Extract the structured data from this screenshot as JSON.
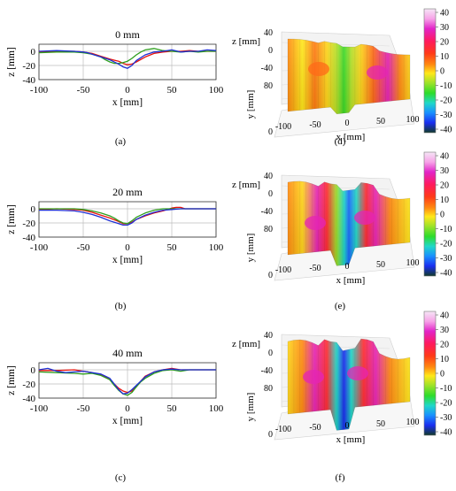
{
  "panels_2d": [
    {
      "letter": "(a)",
      "title": "0 mm",
      "xlabel": "x [mm]",
      "ylabel": "z [mm]",
      "xticks": [
        "-100",
        "-50",
        "0",
        "50",
        "100"
      ],
      "yticks": [
        "0",
        "-20",
        "-40"
      ]
    },
    {
      "letter": "(b)",
      "title": "20 mm",
      "xlabel": "x [mm]",
      "ylabel": "z [mm]",
      "xticks": [
        "-100",
        "-50",
        "0",
        "50",
        "100"
      ],
      "yticks": [
        "0",
        "-20",
        "-40"
      ]
    },
    {
      "letter": "(c)",
      "title": "40 mm",
      "xlabel": "x [mm]",
      "ylabel": "z [mm]",
      "xticks": [
        "-100",
        "-50",
        "0",
        "50",
        "100"
      ],
      "yticks": [
        "0",
        "-20",
        "-40"
      ]
    }
  ],
  "panels_3d": [
    {
      "letter": "(d)",
      "zlabel": "z [mm]",
      "ylabel": "y [mm]",
      "xlabel": "x [mm]",
      "zticks": [
        "40",
        "0",
        "-40"
      ],
      "yticks": [
        "80",
        "0"
      ],
      "xticks": [
        "-100",
        "-50",
        "0",
        "50",
        "100"
      ],
      "colorbar_ticks": [
        "40",
        "30",
        "20",
        "10",
        "0",
        "-10",
        "-20",
        "-30",
        "-40"
      ]
    },
    {
      "letter": "(e)",
      "zlabel": "z [mm]",
      "ylabel": "y [mm]",
      "xlabel": "x [mm]",
      "zticks": [
        "40",
        "0",
        "-40"
      ],
      "yticks": [
        "80",
        "0"
      ],
      "xticks": [
        "-100",
        "-50",
        "0",
        "50",
        "100"
      ],
      "colorbar_ticks": [
        "40",
        "30",
        "20",
        "10",
        "0",
        "-10",
        "-20",
        "-30",
        "-40"
      ]
    },
    {
      "letter": "(f)",
      "zlabel": "z [mm]",
      "ylabel": "y [mm]",
      "xlabel": "x [mm]",
      "zticks": [
        "40",
        "0",
        "-40"
      ],
      "yticks": [
        "80",
        "0"
      ],
      "xticks": [
        "-100",
        "-50",
        "0",
        "50",
        "100"
      ],
      "colorbar_ticks": [
        "40",
        "30",
        "20",
        "10",
        "0",
        "-10",
        "-20",
        "-30",
        "-40"
      ]
    }
  ],
  "colors": {
    "red": "#e8120c",
    "green": "#2e9e1e",
    "blue": "#1d2fd4",
    "grid": "#bdbdbd",
    "axis": "#333333"
  },
  "chart_data": [
    {
      "type": "line",
      "title": "0 mm",
      "xlabel": "x [mm]",
      "ylabel": "z [mm]",
      "xlim": [
        -100,
        100
      ],
      "ylim": [
        -40,
        10
      ],
      "grid": true,
      "series": [
        {
          "color": "#e8120c",
          "x": [
            -100,
            -80,
            -60,
            -50,
            -40,
            -30,
            -20,
            -10,
            -5,
            0,
            5,
            10,
            20,
            30,
            40,
            50,
            60,
            70,
            80,
            90,
            100
          ],
          "y": [
            -1,
            0,
            0,
            -1,
            -3,
            -7,
            -11,
            -14,
            -17,
            -19,
            -18,
            -15,
            -8,
            -3,
            -1,
            0,
            0,
            1,
            0,
            0,
            0
          ]
        },
        {
          "color": "#2e9e1e",
          "x": [
            -100,
            -80,
            -60,
            -50,
            -40,
            -30,
            -25,
            -20,
            -15,
            -10,
            -5,
            0,
            5,
            10,
            15,
            20,
            30,
            40,
            50,
            60,
            70,
            80,
            90,
            100
          ],
          "y": [
            -2,
            -1,
            -1,
            -2,
            -4,
            -8,
            -12,
            -15,
            -17,
            -17,
            -16,
            -14,
            -10,
            -5,
            -1,
            2,
            4,
            1,
            0,
            -1,
            0,
            -1,
            0,
            0
          ]
        },
        {
          "color": "#1d2fd4",
          "x": [
            -100,
            -80,
            -60,
            -50,
            -45,
            -40,
            -30,
            -20,
            -10,
            -5,
            0,
            5,
            10,
            20,
            30,
            40,
            50,
            60,
            70,
            80,
            90,
            100
          ],
          "y": [
            0,
            1,
            0,
            -1,
            -2,
            -4,
            -8,
            -12,
            -18,
            -22,
            -24,
            -20,
            -13,
            -5,
            -1,
            0,
            2,
            -1,
            0,
            0,
            2,
            1
          ]
        }
      ]
    },
    {
      "type": "line",
      "title": "20 mm",
      "xlabel": "x [mm]",
      "ylabel": "z [mm]",
      "xlim": [
        -100,
        100
      ],
      "ylim": [
        -40,
        10
      ],
      "grid": true,
      "series": [
        {
          "color": "#e8120c",
          "x": [
            -100,
            -80,
            -60,
            -50,
            -40,
            -30,
            -20,
            -10,
            -5,
            0,
            5,
            10,
            20,
            30,
            40,
            50,
            55,
            60,
            65,
            70,
            80,
            90,
            100
          ],
          "y": [
            -1,
            0,
            -1,
            -2,
            -5,
            -9,
            -13,
            -18,
            -21,
            -21,
            -19,
            -15,
            -10,
            -6,
            -3,
            1,
            2,
            2,
            0,
            0,
            0,
            0,
            0
          ]
        },
        {
          "color": "#2e9e1e",
          "x": [
            -100,
            -80,
            -60,
            -50,
            -40,
            -30,
            -20,
            -15,
            -10,
            -5,
            0,
            5,
            10,
            20,
            30,
            40,
            50,
            60,
            70,
            80,
            90,
            100
          ],
          "y": [
            0,
            0,
            0,
            -1,
            -3,
            -6,
            -10,
            -13,
            -17,
            -20,
            -21,
            -17,
            -12,
            -6,
            -2,
            0,
            0,
            0,
            0,
            0,
            0,
            0
          ]
        },
        {
          "color": "#1d2fd4",
          "x": [
            -100,
            -80,
            -60,
            -50,
            -40,
            -30,
            -20,
            -10,
            -5,
            0,
            5,
            10,
            20,
            30,
            40,
            50,
            60,
            70,
            80,
            90,
            100
          ],
          "y": [
            -2,
            -2,
            -3,
            -5,
            -8,
            -12,
            -17,
            -21,
            -23,
            -23,
            -20,
            -15,
            -9,
            -5,
            -2,
            -1,
            0,
            0,
            0,
            0,
            0
          ]
        }
      ]
    },
    {
      "type": "line",
      "title": "40 mm",
      "xlabel": "x [mm]",
      "ylabel": "z [mm]",
      "xlim": [
        -100,
        100
      ],
      "ylim": [
        -40,
        10
      ],
      "grid": true,
      "series": [
        {
          "color": "#e8120c",
          "x": [
            -100,
            -80,
            -60,
            -50,
            -40,
            -30,
            -25,
            -20,
            -15,
            -10,
            -5,
            0,
            5,
            10,
            15,
            20,
            30,
            40,
            50,
            60,
            70,
            80,
            90,
            100
          ],
          "y": [
            -1,
            -1,
            0,
            -2,
            -4,
            -7,
            -10,
            -14,
            -20,
            -26,
            -30,
            -32,
            -30,
            -24,
            -16,
            -9,
            -3,
            0,
            2,
            0,
            0,
            0,
            0,
            0
          ]
        },
        {
          "color": "#2e9e1e",
          "x": [
            -100,
            -80,
            -60,
            -50,
            -40,
            -30,
            -20,
            -15,
            -10,
            -5,
            0,
            5,
            10,
            15,
            20,
            30,
            40,
            50,
            60,
            70,
            80,
            90,
            100
          ],
          "y": [
            -3,
            -4,
            -5,
            -6,
            -5,
            -8,
            -14,
            -22,
            -29,
            -34,
            -36,
            -32,
            -24,
            -17,
            -12,
            -5,
            -1,
            0,
            -2,
            0,
            0,
            0,
            0
          ]
        },
        {
          "color": "#1d2fd4",
          "x": [
            -100,
            -90,
            -80,
            -70,
            -60,
            -50,
            -40,
            -30,
            -20,
            -15,
            -10,
            -5,
            0,
            5,
            10,
            15,
            20,
            30,
            40,
            50,
            60,
            70,
            80,
            90,
            100
          ],
          "y": [
            0,
            2,
            -2,
            -4,
            -3,
            -2,
            -4,
            -6,
            -12,
            -20,
            -28,
            -34,
            -33,
            -28,
            -22,
            -16,
            -10,
            -3,
            0,
            1,
            0,
            0,
            0,
            0,
            0
          ]
        }
      ]
    }
  ]
}
